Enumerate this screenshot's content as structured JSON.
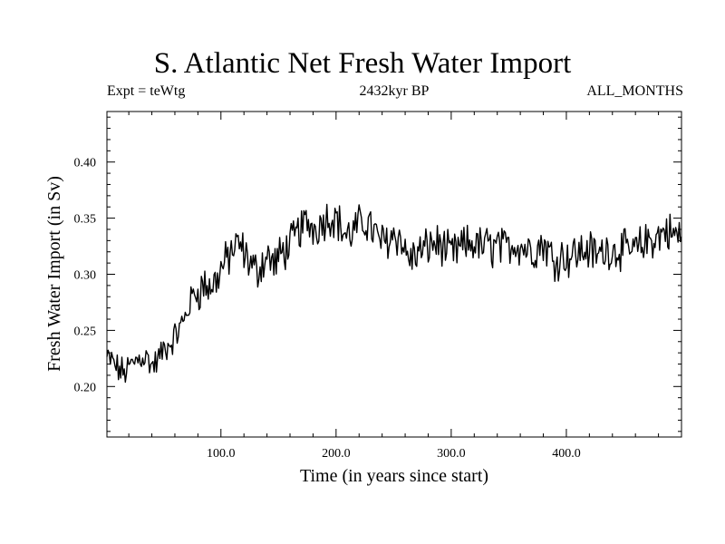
{
  "chart_data": {
    "type": "line",
    "title": "S. Atlantic Net Fresh Water Import",
    "subtitle_left": "Expt = teWtg",
    "subtitle_center": "2432kyr BP",
    "subtitle_right": "ALL_MONTHS",
    "xlabel": "Time (in years since start)",
    "ylabel": "Fresh Water Import (in Sv)",
    "xlim": [
      1,
      500
    ],
    "ylim": [
      0.155,
      0.445
    ],
    "xticks": [
      100,
      200,
      300,
      400
    ],
    "xtick_labels": [
      "100.0",
      "200.0",
      "300.0",
      "400.0"
    ],
    "yticks": [
      0.2,
      0.25,
      0.3,
      0.35,
      0.4
    ],
    "ytick_labels": [
      "0.20",
      "0.25",
      "0.30",
      "0.35",
      "0.40"
    ],
    "grid": false,
    "series": [
      {
        "name": "fresh_water_import",
        "x_start": 1,
        "x_step": 5,
        "values": [
          0.225,
          0.222,
          0.215,
          0.212,
          0.218,
          0.223,
          0.227,
          0.225,
          0.218,
          0.225,
          0.234,
          0.238,
          0.246,
          0.255,
          0.268,
          0.282,
          0.285,
          0.291,
          0.288,
          0.295,
          0.306,
          0.314,
          0.323,
          0.326,
          0.318,
          0.309,
          0.302,
          0.311,
          0.316,
          0.309,
          0.316,
          0.322,
          0.327,
          0.336,
          0.343,
          0.346,
          0.341,
          0.345,
          0.35,
          0.352,
          0.349,
          0.338,
          0.334,
          0.339,
          0.345,
          0.347,
          0.341,
          0.332,
          0.328,
          0.332,
          0.336,
          0.332,
          0.317,
          0.314,
          0.319,
          0.321,
          0.326,
          0.328,
          0.326,
          0.32,
          0.318,
          0.322,
          0.325,
          0.327,
          0.328,
          0.324,
          0.326,
          0.323,
          0.326,
          0.322,
          0.326,
          0.328,
          0.325,
          0.323,
          0.321,
          0.325,
          0.327,
          0.318,
          0.312,
          0.317,
          0.315,
          0.318,
          0.319,
          0.322,
          0.321,
          0.317,
          0.319,
          0.324,
          0.32,
          0.323,
          0.321,
          0.32,
          0.322,
          0.326,
          0.33,
          0.332,
          0.334,
          0.34,
          0.336,
          0.334
        ]
      }
    ]
  }
}
